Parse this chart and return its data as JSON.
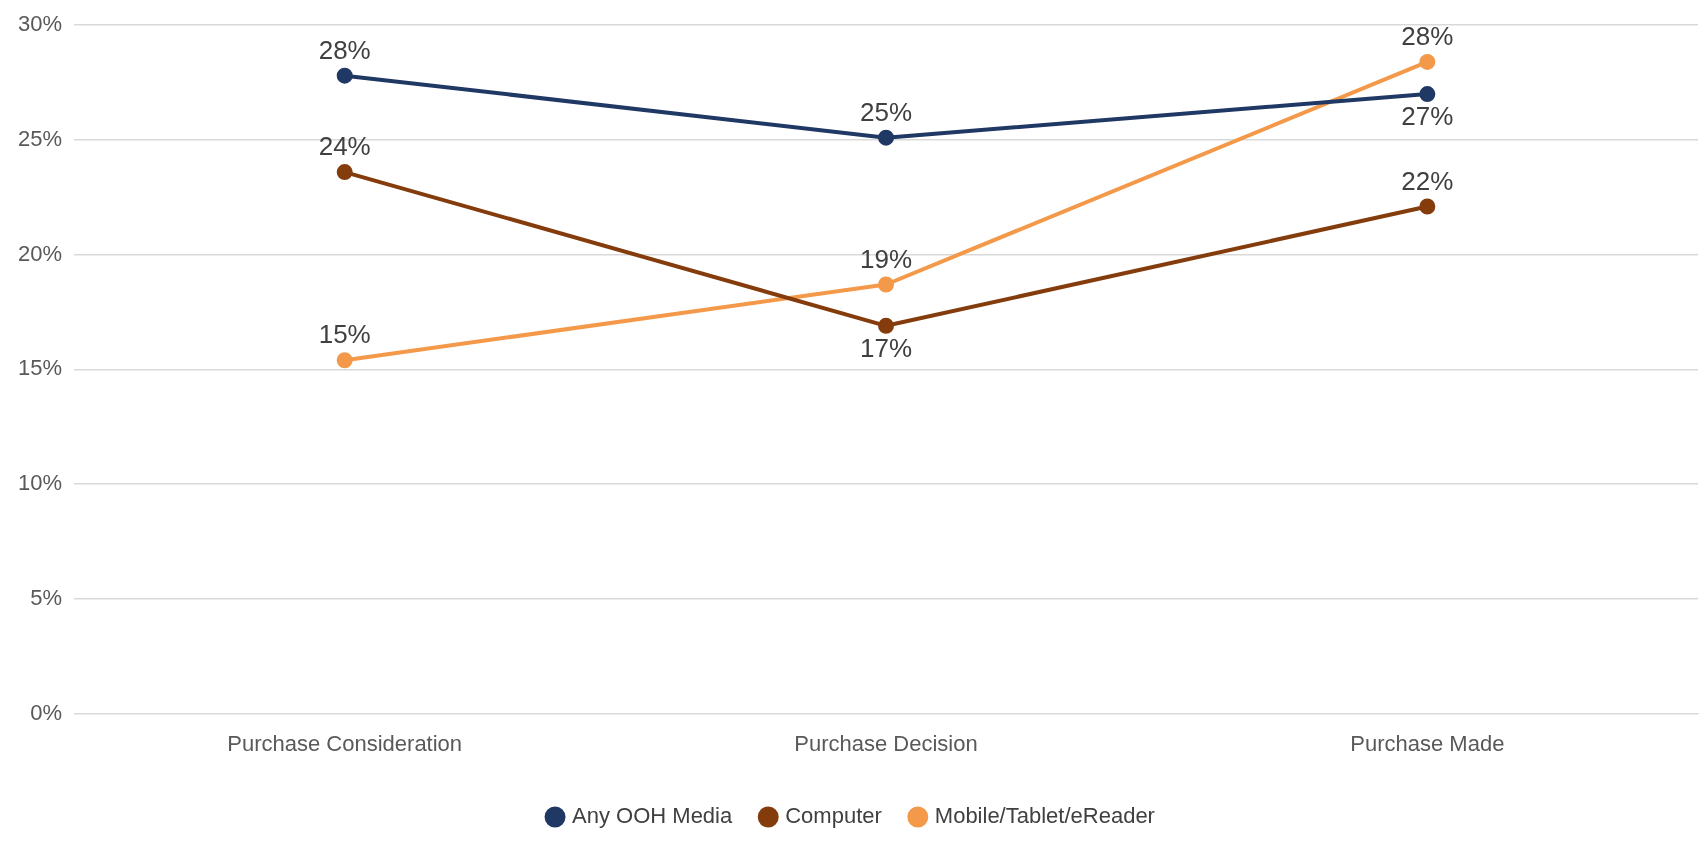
{
  "chart_data": {
    "type": "line",
    "categories": [
      "Purchase Consideration",
      "Purchase Decision",
      "Purchase Made"
    ],
    "series": [
      {
        "name": "Any OOH Media",
        "color": "#203864",
        "values": [
          27.8,
          25.1,
          27.0
        ],
        "value_labels": [
          "28%",
          "25%",
          "27%"
        ]
      },
      {
        "name": "Computer",
        "color": "#843c0c",
        "values": [
          23.6,
          16.9,
          22.1
        ],
        "value_labels": [
          "24%",
          "17%",
          "22%"
        ]
      },
      {
        "name": "Mobile/Tablet/eReader",
        "color": "#f4994a",
        "values": [
          15.4,
          18.7,
          28.4
        ],
        "value_labels": [
          "15%",
          "19%",
          "28%"
        ]
      }
    ],
    "ylim": [
      0,
      30
    ],
    "yticks": [
      {
        "value": 0,
        "label": "0%"
      },
      {
        "value": 5,
        "label": "5%"
      },
      {
        "value": 10,
        "label": "10%"
      },
      {
        "value": 15,
        "label": "15%"
      },
      {
        "value": 20,
        "label": "20%"
      },
      {
        "value": 25,
        "label": "25%"
      },
      {
        "value": 30,
        "label": "30%"
      }
    ],
    "grid": "y",
    "legend": "bottom",
    "marker": "circle",
    "line_style": "solid"
  }
}
